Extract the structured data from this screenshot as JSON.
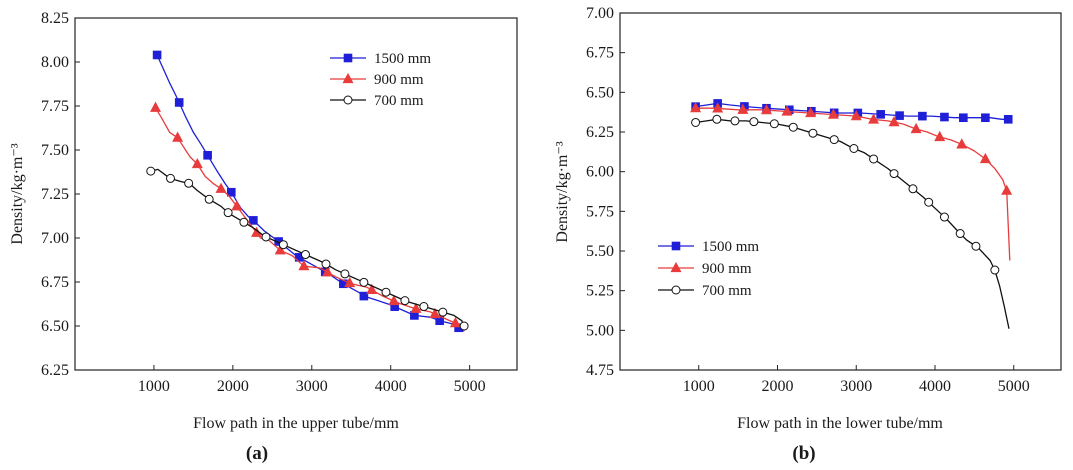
{
  "chart_data": [
    {
      "type": "line",
      "panel_label": "(a)",
      "xlabel": "Flow path in the upper tube/mm",
      "ylabel": "Density/kg·m⁻³",
      "xlim": [
        0,
        5600
      ],
      "ylim": [
        6.25,
        8.25
      ],
      "xticks": [
        1000,
        2000,
        3000,
        4000,
        5000
      ],
      "yticks": [
        6.25,
        6.5,
        6.75,
        7.0,
        7.25,
        7.5,
        7.75,
        8.0,
        8.25
      ],
      "xtick_labels": [
        "1000",
        "2000",
        "3000",
        "4000",
        "5000"
      ],
      "ytick_labels": [
        "6.25",
        "6.50",
        "6.75",
        "7.00",
        "7.25",
        "7.50",
        "7.75",
        "8.00",
        "8.25"
      ],
      "grid": false,
      "legend_position": "top-right",
      "series": [
        {
          "name": "1500 mm",
          "color": "#1f1fd8",
          "marker": "square",
          "x": [
            1040,
            1100,
            1200,
            1300,
            1400,
            1500,
            1600,
            1680,
            1800,
            1900,
            1980,
            2100,
            2200,
            2260,
            2400,
            2580,
            2800,
            3000,
            3200,
            3400,
            3600,
            3660,
            3800,
            4000,
            4050,
            4200,
            4300,
            4500,
            4620,
            4800,
            4860,
            4930
          ],
          "y": [
            8.04,
            7.98,
            7.88,
            7.79,
            7.69,
            7.6,
            7.53,
            7.47,
            7.38,
            7.31,
            7.26,
            7.17,
            7.12,
            7.1,
            7.04,
            6.98,
            6.9,
            6.85,
            6.8,
            6.74,
            6.69,
            6.67,
            6.65,
            6.62,
            6.61,
            6.58,
            6.56,
            6.55,
            6.53,
            6.51,
            6.49,
            6.47
          ],
          "marker_x": [
            1040,
            1320,
            1680,
            1980,
            2260,
            2580,
            2840,
            3170,
            3400,
            3660,
            4050,
            4300,
            4620,
            4860
          ]
        },
        {
          "name": "900 mm",
          "color": "#e83c3c",
          "marker": "triangle",
          "x": [
            1020,
            1100,
            1200,
            1300,
            1400,
            1460,
            1550,
            1650,
            1750,
            1850,
            1950,
            2050,
            2150,
            2250,
            2350,
            2450,
            2600,
            2750,
            2900,
            3100,
            3300,
            3500,
            3700,
            3900,
            4100,
            4300,
            4500,
            4700,
            4900,
            4930
          ],
          "y": [
            7.74,
            7.68,
            7.6,
            7.57,
            7.5,
            7.46,
            7.42,
            7.35,
            7.31,
            7.28,
            7.24,
            7.18,
            7.12,
            7.06,
            7.0,
            6.99,
            6.93,
            6.9,
            6.84,
            6.83,
            6.78,
            6.74,
            6.72,
            6.67,
            6.63,
            6.6,
            6.58,
            6.54,
            6.5,
            6.47
          ],
          "marker_x": [
            1020,
            1300,
            1550,
            1850,
            2050,
            2300,
            2600,
            2900,
            3200,
            3480,
            3760,
            4040,
            4320,
            4560,
            4820
          ]
        },
        {
          "name": "700 mm",
          "color": "#111111",
          "marker": "circle-open",
          "x": [
            960,
            1050,
            1200,
            1350,
            1450,
            1550,
            1700,
            1850,
            1950,
            2100,
            2250,
            2400,
            2550,
            2700,
            2850,
            3000,
            3150,
            3300,
            3450,
            3600,
            3750,
            3900,
            4050,
            4200,
            4350,
            4500,
            4650,
            4800,
            4900,
            4930
          ],
          "y": [
            7.38,
            7.39,
            7.34,
            7.32,
            7.31,
            7.27,
            7.22,
            7.18,
            7.14,
            7.1,
            7.06,
            7.01,
            6.98,
            6.95,
            6.92,
            6.89,
            6.86,
            6.82,
            6.79,
            6.76,
            6.73,
            6.7,
            6.67,
            6.64,
            6.62,
            6.6,
            6.58,
            6.56,
            6.53,
            6.5
          ],
          "marker_x": [
            960,
            1210,
            1440,
            1700,
            1940,
            2140,
            2420,
            2640,
            2920,
            3180,
            3420,
            3660,
            3940,
            4180,
            4420,
            4660,
            4930
          ]
        }
      ]
    },
    {
      "type": "line",
      "panel_label": "(b)",
      "xlabel": "Flow path in the lower tube/mm",
      "ylabel": "Density/kg·m⁻³",
      "xlim": [
        0,
        5600
      ],
      "ylim": [
        4.75,
        7.0
      ],
      "xticks": [
        1000,
        2000,
        3000,
        4000,
        5000
      ],
      "yticks": [
        4.75,
        5.0,
        5.25,
        5.5,
        5.75,
        6.0,
        6.25,
        6.5,
        6.75,
        7.0
      ],
      "xtick_labels": [
        "1000",
        "2000",
        "3000",
        "4000",
        "5000"
      ],
      "ytick_labels": [
        "4.75",
        "5.00",
        "5.25",
        "5.50",
        "5.75",
        "6.00",
        "6.25",
        "6.50",
        "6.75",
        "7.00"
      ],
      "grid": false,
      "legend_position": "center-left",
      "series": [
        {
          "name": "1500 mm",
          "color": "#1f1fd8",
          "marker": "square",
          "x": [
            960,
            1100,
            1240,
            1400,
            1600,
            1850,
            2150,
            2450,
            2750,
            3050,
            3350,
            3650,
            3950,
            4250,
            4550,
            4700,
            4850,
            4960
          ],
          "y": [
            6.41,
            6.42,
            6.43,
            6.42,
            6.41,
            6.4,
            6.39,
            6.38,
            6.37,
            6.37,
            6.36,
            6.35,
            6.35,
            6.34,
            6.34,
            6.34,
            6.33,
            6.33
          ],
          "marker_x": [
            960,
            1240,
            1580,
            1860,
            2150,
            2430,
            2720,
            3020,
            3310,
            3550,
            3840,
            4120,
            4360,
            4640,
            4930
          ]
        },
        {
          "name": "900 mm",
          "color": "#e83c3c",
          "marker": "triangle",
          "x": [
            960,
            1200,
            1500,
            1800,
            2100,
            2400,
            2700,
            3000,
            3200,
            3400,
            3600,
            3750,
            3900,
            4050,
            4200,
            4350,
            4500,
            4640,
            4760,
            4860,
            4910,
            4950
          ],
          "y": [
            6.4,
            6.4,
            6.39,
            6.39,
            6.38,
            6.37,
            6.36,
            6.35,
            6.33,
            6.32,
            6.3,
            6.27,
            6.25,
            6.22,
            6.2,
            6.17,
            6.13,
            6.08,
            6.02,
            5.95,
            5.88,
            5.44
          ],
          "marker_x": [
            960,
            1240,
            1560,
            1860,
            2120,
            2420,
            2710,
            3000,
            3220,
            3480,
            3760,
            4060,
            4340,
            4640,
            4910
          ]
        },
        {
          "name": "700 mm",
          "color": "#111111",
          "marker": "circle-open",
          "x": [
            960,
            1100,
            1230,
            1400,
            1600,
            1800,
            2000,
            2200,
            2400,
            2600,
            2800,
            2950,
            3100,
            3250,
            3400,
            3550,
            3700,
            3850,
            4000,
            4150,
            4300,
            4400,
            4550,
            4700,
            4760,
            4820,
            4880,
            4940
          ],
          "y": [
            6.31,
            6.32,
            6.33,
            6.32,
            6.32,
            6.31,
            6.3,
            6.28,
            6.25,
            6.22,
            6.19,
            6.15,
            6.12,
            6.07,
            6.02,
            5.96,
            5.9,
            5.84,
            5.77,
            5.7,
            5.62,
            5.57,
            5.52,
            5.44,
            5.38,
            5.28,
            5.15,
            5.01
          ],
          "marker_x": [
            960,
            1230,
            1460,
            1700,
            1960,
            2200,
            2450,
            2720,
            2970,
            3220,
            3480,
            3720,
            3920,
            4120,
            4320,
            4520,
            4760
          ]
        }
      ]
    }
  ]
}
